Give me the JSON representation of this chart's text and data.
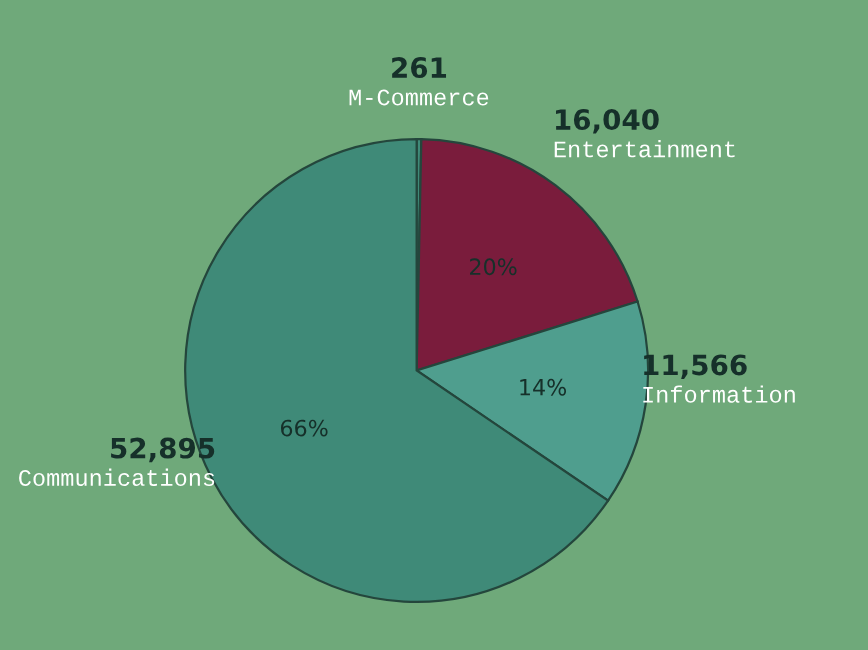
{
  "chart_data": {
    "type": "pie",
    "categories": [
      "M-Commerce",
      "Entertainment",
      "Information",
      "Communications"
    ],
    "values": [
      261,
      16040,
      11566,
      52895
    ],
    "value_labels": [
      "261",
      "16,040",
      "11,566",
      "52,895"
    ],
    "colors": [
      "#3f8a78",
      "#7a1c3c",
      "#4f9e8e",
      "#3f8a78"
    ],
    "annotations": [
      {
        "text": "20%",
        "x": "Entertainment"
      },
      {
        "text": "14%",
        "x": "Information"
      },
      {
        "text": "66%",
        "x": "Communications"
      }
    ]
  }
}
